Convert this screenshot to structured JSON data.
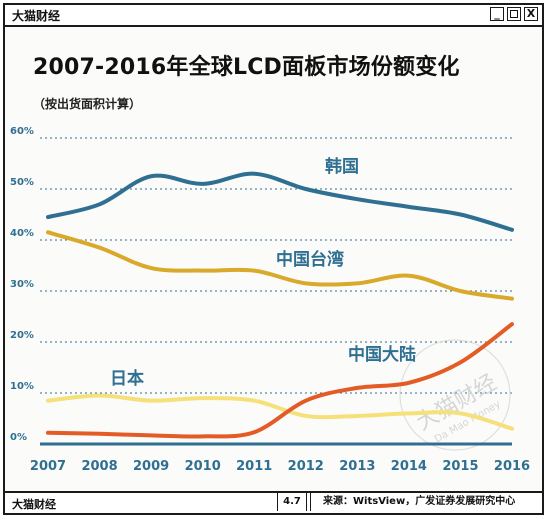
{
  "window": {
    "brand": "大猫财经",
    "controls": [
      "_",
      "□",
      "X"
    ]
  },
  "chart_data": {
    "type": "line",
    "title": "2007-2016年全球LCD面板市场份额变化",
    "subtitle": "（按出货面积计算）",
    "x": [
      2007,
      2008,
      2009,
      2010,
      2011,
      2012,
      2013,
      2014,
      2015,
      2016
    ],
    "y_ticks": [
      "60%",
      "50%",
      "40%",
      "30%",
      "20%",
      "10%",
      "0%"
    ],
    "ylim": [
      0,
      60
    ],
    "grid": true,
    "series": [
      {
        "name": "韩国",
        "color": "#2f6f92",
        "values": [
          44.5,
          47,
          52.5,
          51,
          53,
          50,
          48,
          46.5,
          45,
          42
        ]
      },
      {
        "name": "中国台湾",
        "color": "#d8a92a",
        "values": [
          41.5,
          38.5,
          34.5,
          34,
          34,
          31.5,
          31.5,
          33,
          30,
          28.5
        ]
      },
      {
        "name": "中国大陆",
        "color": "#e35b25",
        "values": [
          2.2,
          2.0,
          1.7,
          1.5,
          2.3,
          8.5,
          11,
          12,
          16,
          23.5
        ]
      },
      {
        "name": "日本",
        "color": "#f5e07a",
        "values": [
          8.5,
          9.5,
          8.5,
          9,
          8.5,
          5.5,
          5.5,
          6,
          6,
          3
        ]
      }
    ]
  },
  "watermark": {
    "text": "大猫财经",
    "subtext": "Da Mao Money"
  },
  "footer": {
    "brand": "大猫财经",
    "page": "4.7",
    "source": "来源：WitsView，广发证券发展研究中心"
  }
}
